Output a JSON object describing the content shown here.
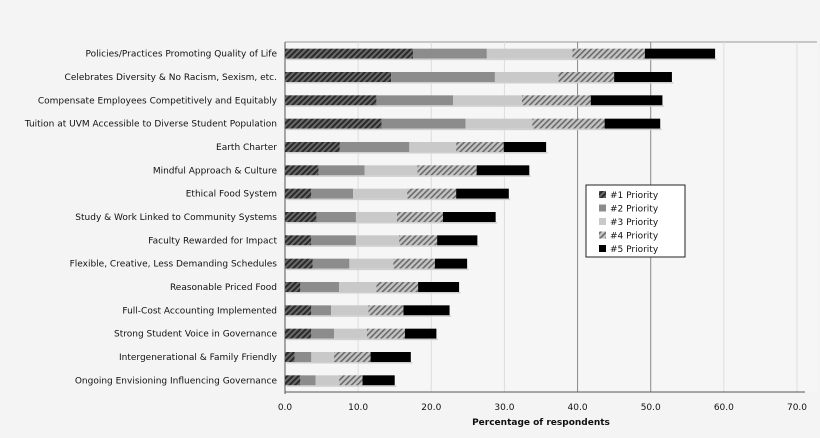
{
  "chart_data": {
    "type": "bar",
    "orientation": "horizontal",
    "stacked": true,
    "title": "",
    "xlabel": "Percentage of respondents",
    "ylabel": "",
    "xlim": [
      0,
      70
    ],
    "xticks": [
      "0.0",
      "10.0",
      "20.0",
      "30.0",
      "40.0",
      "50.0",
      "60.0",
      "70.0"
    ],
    "grid": true,
    "legend_position": "right",
    "categories": [
      "Policies/Practices Promoting Quality of Life",
      "Celebrates Diversity & No Racism, Sexism, etc.",
      "Compensate Employees Competitively and Equitably",
      "Tuition at UVM Accessible to Diverse Student Population",
      "Earth Charter",
      "Mindful Approach & Culture",
      "Ethical Food System",
      "Study & Work Linked to Community Systems",
      "Faculty Rewarded for Impact",
      "Flexible, Creative, Less Demanding Schedules",
      "Reasonable Priced Food",
      "Full-Cost Accounting Implemented",
      "Strong Student Voice in Governance",
      "Intergenerational & Family Friendly",
      "Ongoing Envisioning Influencing Governance"
    ],
    "series": [
      {
        "name": "#1 Priority",
        "color": "#3a3a3a",
        "pattern": "dark-hatch",
        "values": [
          17.5,
          14.5,
          12.5,
          13.2,
          7.5,
          4.6,
          3.6,
          4.3,
          3.6,
          3.8,
          2.1,
          3.6,
          3.6,
          1.3,
          2.1
        ]
      },
      {
        "name": "#2 Priority",
        "color": "#8c8c8c",
        "pattern": "solid",
        "values": [
          10.1,
          14.2,
          10.5,
          11.5,
          9.5,
          6.3,
          5.7,
          5.4,
          6.1,
          5.0,
          5.3,
          2.7,
          3.1,
          2.3,
          2.1
        ]
      },
      {
        "name": "#3 Priority",
        "color": "#c9c9c9",
        "pattern": "solid",
        "values": [
          11.7,
          8.7,
          9.4,
          9.1,
          6.4,
          7.2,
          7.4,
          5.6,
          5.9,
          6.0,
          5.1,
          5.1,
          4.5,
          3.1,
          3.2
        ]
      },
      {
        "name": "#4 Priority",
        "color": "#9a9a9a",
        "pattern": "light-hatch",
        "values": [
          9.9,
          7.6,
          9.4,
          9.9,
          6.5,
          8.1,
          6.7,
          6.3,
          5.2,
          5.7,
          5.7,
          4.8,
          5.2,
          5.0,
          3.2
        ]
      },
      {
        "name": "#5 Priority",
        "color": "#000000",
        "pattern": "solid",
        "values": [
          9.6,
          7.9,
          9.8,
          7.6,
          5.8,
          7.2,
          7.2,
          7.2,
          5.5,
          4.4,
          5.6,
          6.3,
          4.3,
          5.5,
          4.4
        ]
      }
    ]
  }
}
